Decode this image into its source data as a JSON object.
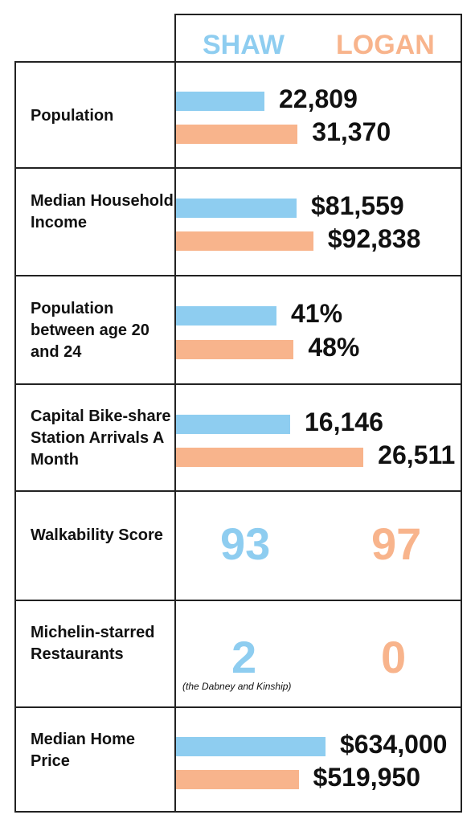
{
  "colors": {
    "shaw": "#8ecdf0",
    "logan": "#f8b48c",
    "grid": "#222222"
  },
  "header": {
    "shaw": "SHAW",
    "logan": "LOGAN"
  },
  "chart_data": {
    "type": "bar",
    "series": [
      {
        "name": "SHAW"
      },
      {
        "name": "LOGAN"
      }
    ],
    "rows": [
      {
        "label": "Population",
        "kind": "bar",
        "values": [
          22809,
          31370
        ],
        "display": [
          "22,809",
          "31,370"
        ]
      },
      {
        "label": "Median Household Income",
        "kind": "bar",
        "values": [
          81559,
          92838
        ],
        "display": [
          "$81,559",
          "$92,838"
        ]
      },
      {
        "label": "Population between age 20 and 24",
        "kind": "bar",
        "values": [
          41,
          48
        ],
        "display": [
          "41%",
          "48%"
        ]
      },
      {
        "label": "Capital Bike-share Station Arrivals A Month",
        "kind": "bar",
        "values": [
          16146,
          26511
        ],
        "display": [
          "16,146",
          "26,511"
        ]
      },
      {
        "label": "Walkability Score",
        "kind": "number",
        "values": [
          93,
          97
        ],
        "display": [
          "93",
          "97"
        ]
      },
      {
        "label": "Michelin-starred Restaurants",
        "kind": "number",
        "values": [
          2,
          0
        ],
        "display": [
          "2",
          "0"
        ],
        "note": "(the Dabney and Kinship)"
      },
      {
        "label": "Median Home Price",
        "kind": "bar",
        "values": [
          634000,
          519950
        ],
        "display": [
          "$634,000",
          "$519,950"
        ]
      }
    ]
  }
}
